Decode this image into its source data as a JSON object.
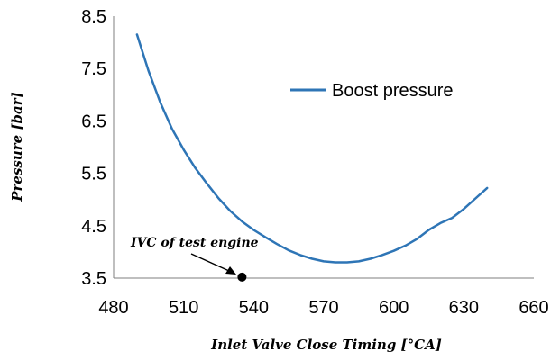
{
  "chart_data": {
    "type": "line",
    "xlabel": "Inlet Valve Close Timing [°CA]",
    "ylabel": "Pressure  [bar]",
    "xlim": [
      480,
      660
    ],
    "ylim": [
      3.5,
      8.5
    ],
    "xticks": [
      480,
      510,
      540,
      570,
      600,
      630,
      660
    ],
    "yticks": [
      3.5,
      4.5,
      5.5,
      6.5,
      7.5,
      8.5
    ],
    "x_tick_labels": [
      "480",
      "510",
      "540",
      "570",
      "600",
      "630",
      "660"
    ],
    "y_tick_labels": [
      "3.5",
      "4.5",
      "5.5",
      "6.5",
      "7.5",
      "8.5"
    ],
    "grid": false,
    "legend_position": "top-right",
    "series": [
      {
        "name": "Boost pressure",
        "color": "#2e75b6",
        "x": [
          490,
          495,
          500,
          505,
          510,
          515,
          520,
          525,
          530,
          535,
          540,
          545,
          550,
          555,
          560,
          565,
          570,
          575,
          580,
          585,
          590,
          595,
          600,
          605,
          610,
          615,
          620,
          625,
          630,
          635,
          640
        ],
        "y": [
          8.15,
          7.45,
          6.85,
          6.35,
          5.95,
          5.6,
          5.3,
          5.02,
          4.78,
          4.58,
          4.42,
          4.28,
          4.15,
          4.03,
          3.94,
          3.87,
          3.82,
          3.8,
          3.8,
          3.82,
          3.87,
          3.94,
          4.02,
          4.12,
          4.25,
          4.42,
          4.55,
          4.65,
          4.82,
          5.02,
          5.22
        ]
      }
    ],
    "annotations": [
      {
        "text": "IVC  of  test engine",
        "point": {
          "x": 535,
          "y": 3.52
        },
        "marker_color": "#000000"
      }
    ]
  }
}
